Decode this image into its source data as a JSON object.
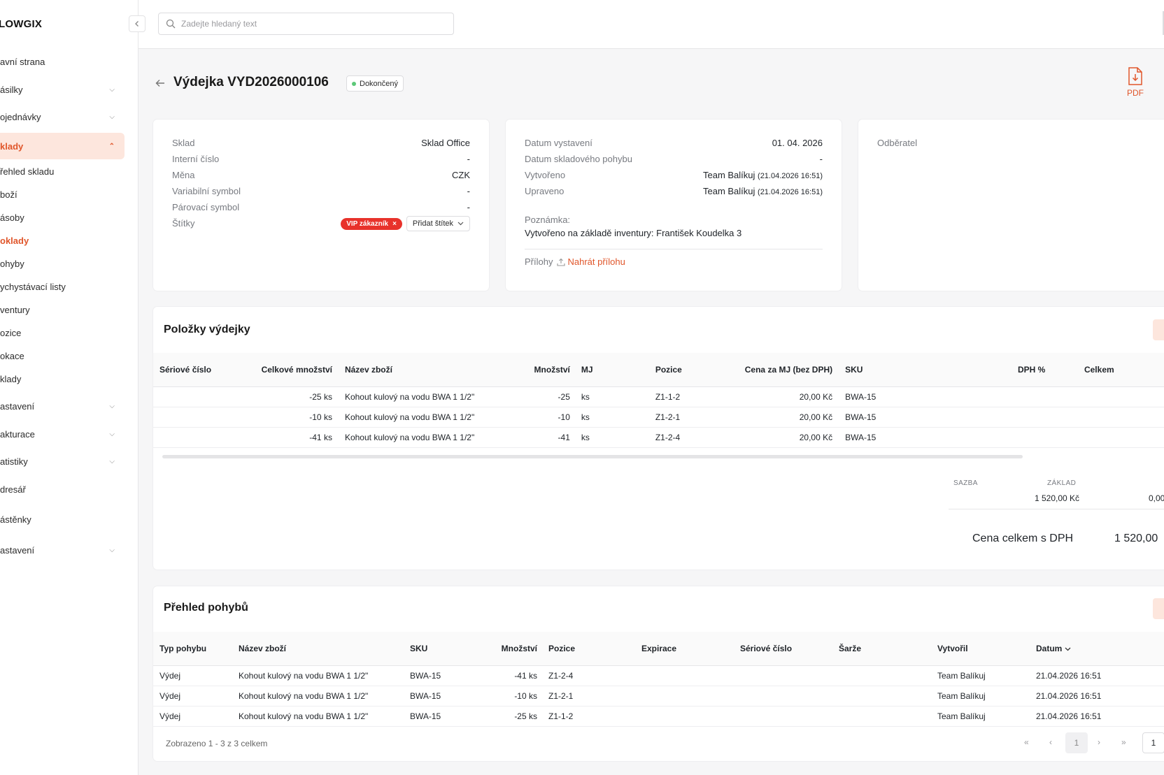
{
  "app": {
    "logo": "LOWGIX"
  },
  "search": {
    "placeholder": "Zadejte hledaný text"
  },
  "sidebar": {
    "items": [
      {
        "label": "avní strana"
      },
      {
        "label": "ásilky"
      },
      {
        "label": "ojednávky"
      },
      {
        "label": "klady"
      },
      {
        "label": "astavení"
      },
      {
        "label": "akturace"
      },
      {
        "label": "atistiky"
      },
      {
        "label": "dresář"
      },
      {
        "label": "ástěnky"
      },
      {
        "label": "astavení"
      }
    ],
    "sub_items": [
      {
        "label": "řehled skladu"
      },
      {
        "label": "boží"
      },
      {
        "label": "ásoby"
      },
      {
        "label": "oklady"
      },
      {
        "label": "ohyby"
      },
      {
        "label": "ychystávací listy"
      },
      {
        "label": "ventury"
      },
      {
        "label": "ozice"
      },
      {
        "label": "okace"
      },
      {
        "label": "klady"
      }
    ]
  },
  "header": {
    "title": "Výdejka VYD2026000106",
    "status": "Dokončený",
    "pdf_label": "PDF"
  },
  "info": {
    "warehouse_label": "Sklad",
    "warehouse_value": "Sklad Office",
    "internal_label": "Interní číslo",
    "internal_value": "-",
    "currency_label": "Měna",
    "currency_value": "CZK",
    "variable_label": "Variabilní symbol",
    "variable_value": "-",
    "pairing_label": "Párovací symbol",
    "pairing_value": "-",
    "tags_label": "Štítky",
    "tag_vip": "VIP zákazník",
    "tag_add": "Přidat štítek",
    "issued_label": "Datum vystavení",
    "issued_value": "01. 04. 2026",
    "movement_label": "Datum skladového pohybu",
    "movement_value": "-",
    "created_label": "Vytvořeno",
    "created_by": "Team Balíkuj",
    "created_at": "(21.04.2026 16:51)",
    "updated_label": "Upraveno",
    "updated_by": "Team Balíkuj",
    "updated_at": "(21.04.2026 16:51)",
    "note_label": "Poznámka:",
    "note_value": "Vytvořeno na základě inventury: František Koudelka 3",
    "attachments_label": "Přílohy",
    "upload_label": "Nahrát přílohu",
    "customer_label": "Odběratel"
  },
  "items_section": {
    "title": "Položky výdejky",
    "columns": [
      "Sériové číslo",
      "Celkové množství",
      "Název zboží",
      "Množství",
      "MJ",
      "Pozice",
      "Cena za MJ (bez DPH)",
      "SKU",
      "DPH %",
      "Celkem"
    ],
    "rows": [
      {
        "serial": "",
        "total_qty": "-25 ks",
        "name": "Kohout kulový na vodu BWA 1 1/2\"",
        "qty": "-25",
        "unit": "ks",
        "position": "Z1-1-2",
        "price": "20,00 Kč",
        "sku": "BWA-15"
      },
      {
        "serial": "",
        "total_qty": "-10 ks",
        "name": "Kohout kulový na vodu BWA 1 1/2\"",
        "qty": "-10",
        "unit": "ks",
        "position": "Z1-2-1",
        "price": "20,00 Kč",
        "sku": "BWA-15"
      },
      {
        "serial": "",
        "total_qty": "-41 ks",
        "name": "Kohout kulový na vodu BWA 1 1/2\"",
        "qty": "-41",
        "unit": "ks",
        "position": "Z1-2-4",
        "price": "20,00 Kč",
        "sku": "BWA-15"
      }
    ],
    "summary": {
      "rate_label": "SAZBA",
      "base_label": "ZÁKLAD",
      "base_value": "1 520,00 Kč",
      "vat_value": "0,00",
      "total_label": "Cena celkem s DPH",
      "total_value": "1 520,00"
    }
  },
  "movements_section": {
    "title": "Přehled pohybů",
    "columns": [
      "Typ pohybu",
      "Název zboží",
      "SKU",
      "Množství",
      "Pozice",
      "Expirace",
      "Sériové číslo",
      "Šarže",
      "Vytvořil",
      "Datum"
    ],
    "rows": [
      {
        "type": "Výdej",
        "name": "Kohout kulový na vodu BWA 1 1/2\"",
        "sku": "BWA-15",
        "qty": "-41 ks",
        "position": "Z1-2-4",
        "created_by": "Team Balíkuj",
        "date": "21.04.2026 16:51"
      },
      {
        "type": "Výdej",
        "name": "Kohout kulový na vodu BWA 1 1/2\"",
        "sku": "BWA-15",
        "qty": "-10 ks",
        "position": "Z1-2-1",
        "created_by": "Team Balíkuj",
        "date": "21.04.2026 16:51"
      },
      {
        "type": "Výdej",
        "name": "Kohout kulový na vodu BWA 1 1/2\"",
        "sku": "BWA-15",
        "qty": "-25 ks",
        "position": "Z1-1-2",
        "created_by": "Team Balíkuj",
        "date": "21.04.2026 16:51"
      }
    ],
    "footer": "Zobrazeno 1 - 3 z 3 celkem",
    "current_page": "1",
    "page_input": "1"
  },
  "colors": {
    "accent": "#e0562b",
    "accent_bg": "#fde6dd",
    "vip": "#e8322b",
    "status_dot": "#5cc878"
  }
}
